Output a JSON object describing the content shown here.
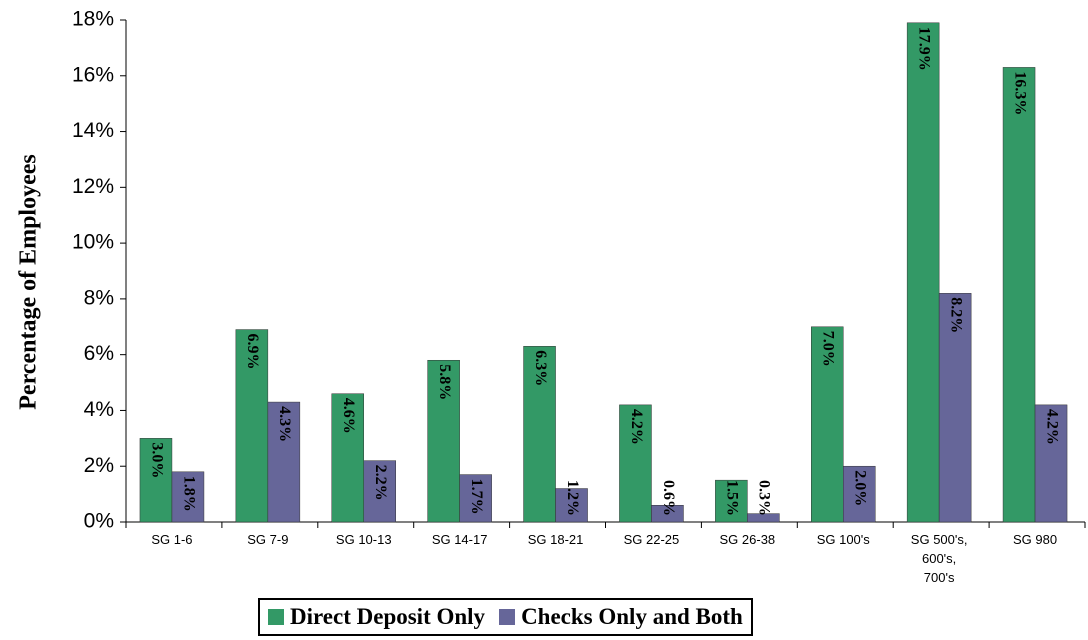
{
  "chart_data": {
    "type": "bar",
    "y_label": "Percentage of Employees",
    "categories": [
      "SG 1-6",
      "SG 7-9",
      "SG 10-13",
      "SG 14-17",
      "SG 18-21",
      "SG 22-25",
      "SG 26-38",
      "SG 100's",
      "SG 500's, 600's, 700's",
      "SG 980"
    ],
    "series": [
      {
        "name": "Direct Deposit Only",
        "color": "#339966",
        "values": [
          3.0,
          6.9,
          4.6,
          5.8,
          6.3,
          4.2,
          1.5,
          7.0,
          17.9,
          16.3
        ],
        "value_labels": [
          "3.0%",
          "6.9%",
          "4.6%",
          "5.8%",
          "6.3%",
          "4.2%",
          "1.5%",
          "7.0%",
          "17.9%",
          "16.3%"
        ]
      },
      {
        "name": "Checks Only and Both",
        "color": "#666699",
        "values": [
          1.8,
          4.3,
          2.2,
          1.7,
          1.2,
          0.6,
          0.3,
          2.0,
          8.2,
          4.2
        ],
        "value_labels": [
          "1.8%",
          "4.3%",
          "2.2%",
          "1.7%",
          "1.2%",
          "0.6%",
          "0.3%",
          "2.0%",
          "8.2%",
          "4.2%"
        ]
      }
    ],
    "ylim": [
      0,
      18
    ],
    "yticks": [
      {
        "value": 0,
        "label": "0%"
      },
      {
        "value": 2,
        "label": "2%"
      },
      {
        "value": 4,
        "label": "4%"
      },
      {
        "value": 6,
        "label": "6%"
      },
      {
        "value": 8,
        "label": "8%"
      },
      {
        "value": 10,
        "label": "10%"
      },
      {
        "value": 12,
        "label": "12%"
      },
      {
        "value": 14,
        "label": "14%"
      },
      {
        "value": 16,
        "label": "16%"
      },
      {
        "value": 18,
        "label": "18%"
      }
    ],
    "legend": "bottom"
  }
}
